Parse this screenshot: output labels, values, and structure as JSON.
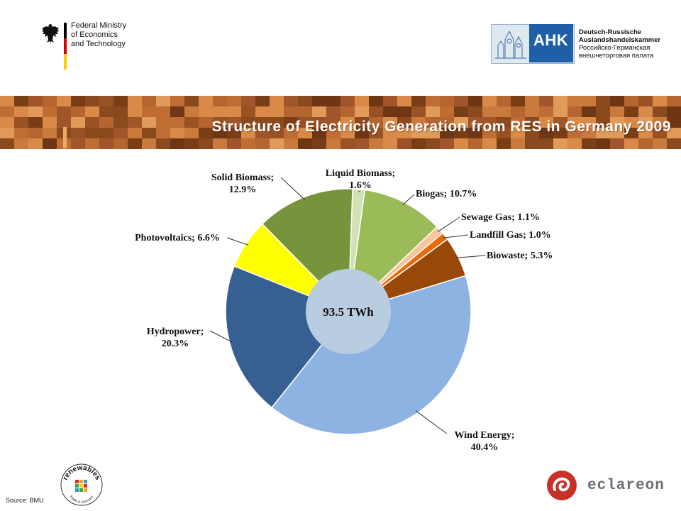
{
  "header": {
    "ministry_lines": [
      "Federal Ministry",
      "of Economics",
      "and Technology"
    ],
    "ahk_logo": "AHK",
    "ahk_lines": [
      "Deutsch-Russische",
      "Auslandshandelskammer"
    ],
    "ahk_lines_ru": [
      "Российско-Германская",
      "внешнеторговая палата"
    ],
    "flag_colors": [
      "#000000",
      "#dd0000",
      "#ffce00"
    ]
  },
  "footer": {
    "source": "Source: BMU",
    "renewables_logo": "renewables",
    "renewables_sub": "Made in Germany",
    "eclareon_logo": "eclareon",
    "eclareon_color": "#c8302a"
  },
  "chart_data": {
    "type": "pie",
    "title": "Structure of Electricity Generation from RES in Germany 2009",
    "center_label": "93.5 TWh",
    "unit": "%",
    "slices": [
      {
        "name": "Liquid Biomass",
        "label": [
          "Liquid Biomass;",
          "1.6%"
        ],
        "value": 1.6,
        "color": "#d3e0b4"
      },
      {
        "name": "Biogas",
        "label": [
          "Biogas; 10.7%"
        ],
        "value": 10.7,
        "color": "#9bbb59"
      },
      {
        "name": "Sewage Gas",
        "label": [
          "Sewage Gas; 1.1%"
        ],
        "value": 1.1,
        "color": "#f9c59b"
      },
      {
        "name": "Landfill Gas",
        "label": [
          "Landfill Gas; 1.0%"
        ],
        "value": 1.0,
        "color": "#e46c0a"
      },
      {
        "name": "Biowaste",
        "label": [
          "Biowaste; 5.3%"
        ],
        "value": 5.3,
        "color": "#984807"
      },
      {
        "name": "Wind Energy",
        "label": [
          "Wind Energy;",
          "40.4%"
        ],
        "value": 40.4,
        "color": "#8db3e2"
      },
      {
        "name": "Hydropower",
        "label": [
          "Hydropower;",
          "20.3%"
        ],
        "value": 20.3,
        "color": "#376092"
      },
      {
        "name": "Photovoltaics",
        "label": [
          "Photovoltaics; 6.6%"
        ],
        "value": 6.6,
        "color": "#ffff00"
      },
      {
        "name": "Solid Biomass",
        "label": [
          "Solid Biomass;",
          "12.9%"
        ],
        "value": 12.9,
        "color": "#77933c"
      }
    ]
  }
}
